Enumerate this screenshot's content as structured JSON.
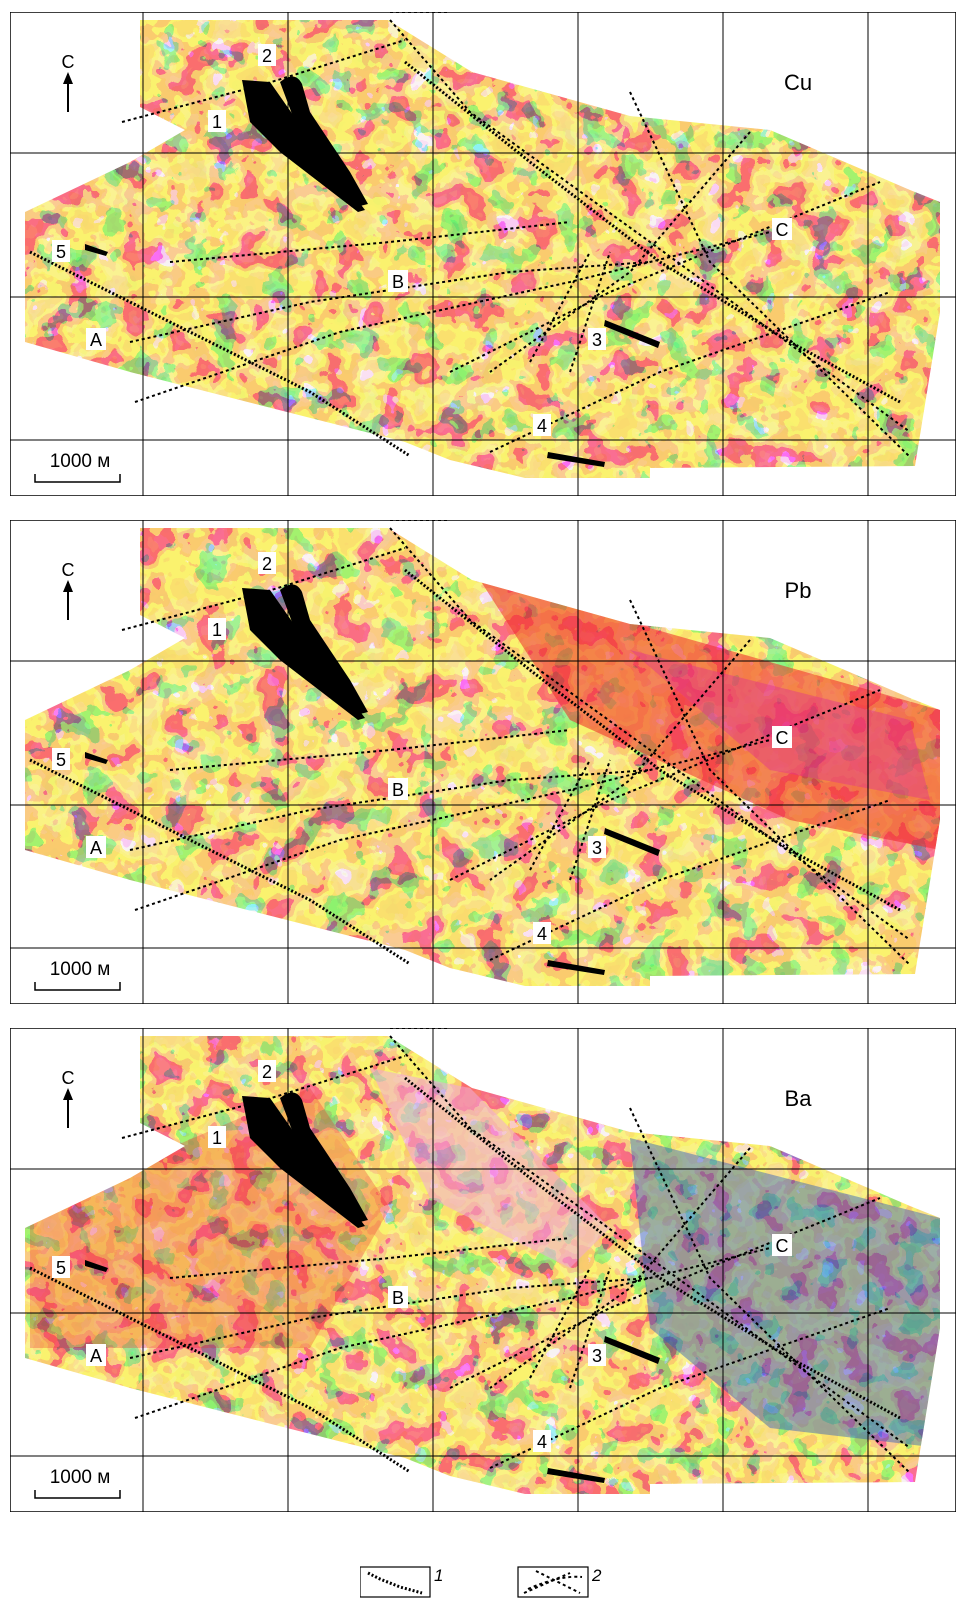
{
  "north_label": "С",
  "scale_label": "1000 м",
  "zone_labels": {
    "A": "А",
    "B": "В",
    "C": "С"
  },
  "deposit_labels": {
    "d1": "1",
    "d2": "2",
    "d3": "3",
    "d4": "4",
    "d5": "5"
  },
  "panels": [
    {
      "id": "cu",
      "element": "Cu",
      "palette": "cu"
    },
    {
      "id": "pb",
      "element": "Pb",
      "palette": "pb"
    },
    {
      "id": "ba",
      "element": "Ba",
      "palette": "ba"
    }
  ],
  "legend": {
    "item1_label": "1",
    "item2_label": "2"
  },
  "colors": {
    "blue": "#2a5bbf",
    "cyan": "#45b6e6",
    "green": "#5fbf4a",
    "yellow": "#f4e23a",
    "orange": "#f59a28",
    "red": "#ee2a2a",
    "magenta": "#e0358f",
    "pink": "#f0a8d8"
  }
}
